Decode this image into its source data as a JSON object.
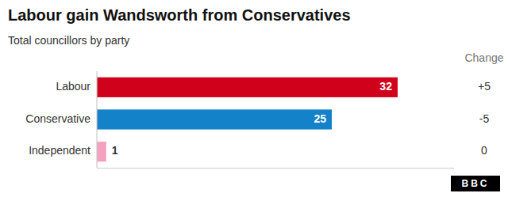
{
  "chart_data": {
    "type": "bar",
    "orientation": "horizontal",
    "title": "Labour gain Wandsworth from Conservatives",
    "subtitle": "Total councillors by party",
    "categories": [
      "Labour",
      "Conservative",
      "Independent"
    ],
    "values": [
      32,
      25,
      1
    ],
    "colors": [
      "#d0021b",
      "#1482c8",
      "#f4a0be"
    ],
    "changes": {
      "name": "Change",
      "values": [
        5,
        -5,
        0
      ],
      "value_labels": [
        "+5",
        "-5",
        "0"
      ]
    },
    "xlim": [
      0,
      38
    ],
    "data_labels": true,
    "tick_labels": "y",
    "grid": false,
    "annotations": [
      "BBC"
    ]
  }
}
